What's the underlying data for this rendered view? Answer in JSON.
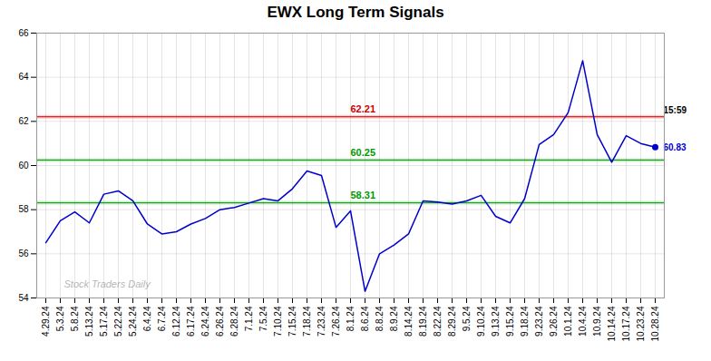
{
  "chart_data": {
    "type": "line",
    "title": "EWX Long Term Signals",
    "categories": [
      "4.29.24",
      "5.3.24",
      "5.8.24",
      "5.13.24",
      "5.17.24",
      "5.22.24",
      "5.24.24",
      "6.4.24",
      "6.7.24",
      "6.12.24",
      "6.17.24",
      "6.24.24",
      "6.26.24",
      "6.28.24",
      "7.1.24",
      "7.5.24",
      "7.10.24",
      "7.15.24",
      "7.18.24",
      "7.23.24",
      "7.26.24",
      "8.1.24",
      "8.6.24",
      "8.8.24",
      "8.9.24",
      "8.14.24",
      "8.19.24",
      "8.22.24",
      "8.29.24",
      "9.5.24",
      "9.10.24",
      "9.13.24",
      "9.15.24",
      "9.18.24",
      "9.23.24",
      "9.26.24",
      "10.1.24",
      "10.4.24",
      "10.9.24",
      "10.14.24",
      "10.17.24",
      "10.23.24",
      "10.28.24"
    ],
    "values": [
      56.5,
      57.5,
      57.9,
      57.4,
      58.7,
      58.85,
      58.4,
      57.35,
      56.9,
      57.0,
      57.35,
      57.6,
      58.0,
      58.1,
      58.3,
      58.5,
      58.4,
      58.95,
      59.75,
      59.55,
      57.2,
      57.95,
      54.3,
      56.0,
      56.4,
      56.9,
      58.4,
      58.35,
      58.25,
      58.4,
      58.65,
      57.7,
      57.4,
      58.5,
      60.95,
      61.4,
      62.4,
      64.75,
      61.4,
      60.15,
      61.35,
      61.0,
      60.83
    ],
    "color": "#0000cc",
    "ylim": [
      54,
      66
    ],
    "yticks": [
      54,
      56,
      58,
      60,
      62,
      64,
      66
    ],
    "grid": true,
    "hlines": [
      {
        "value": 62.21,
        "label": "62.21",
        "color": "#cc0000"
      },
      {
        "value": 60.25,
        "label": "60.25",
        "color": "#009900"
      },
      {
        "value": 58.31,
        "label": "58.31",
        "color": "#009900"
      }
    ],
    "annotations": [
      {
        "text": "15:59",
        "y": 62.21
      },
      {
        "text": "60.83",
        "y": 60.83
      },
      {
        "text": "Stock Traders Daily"
      }
    ]
  }
}
